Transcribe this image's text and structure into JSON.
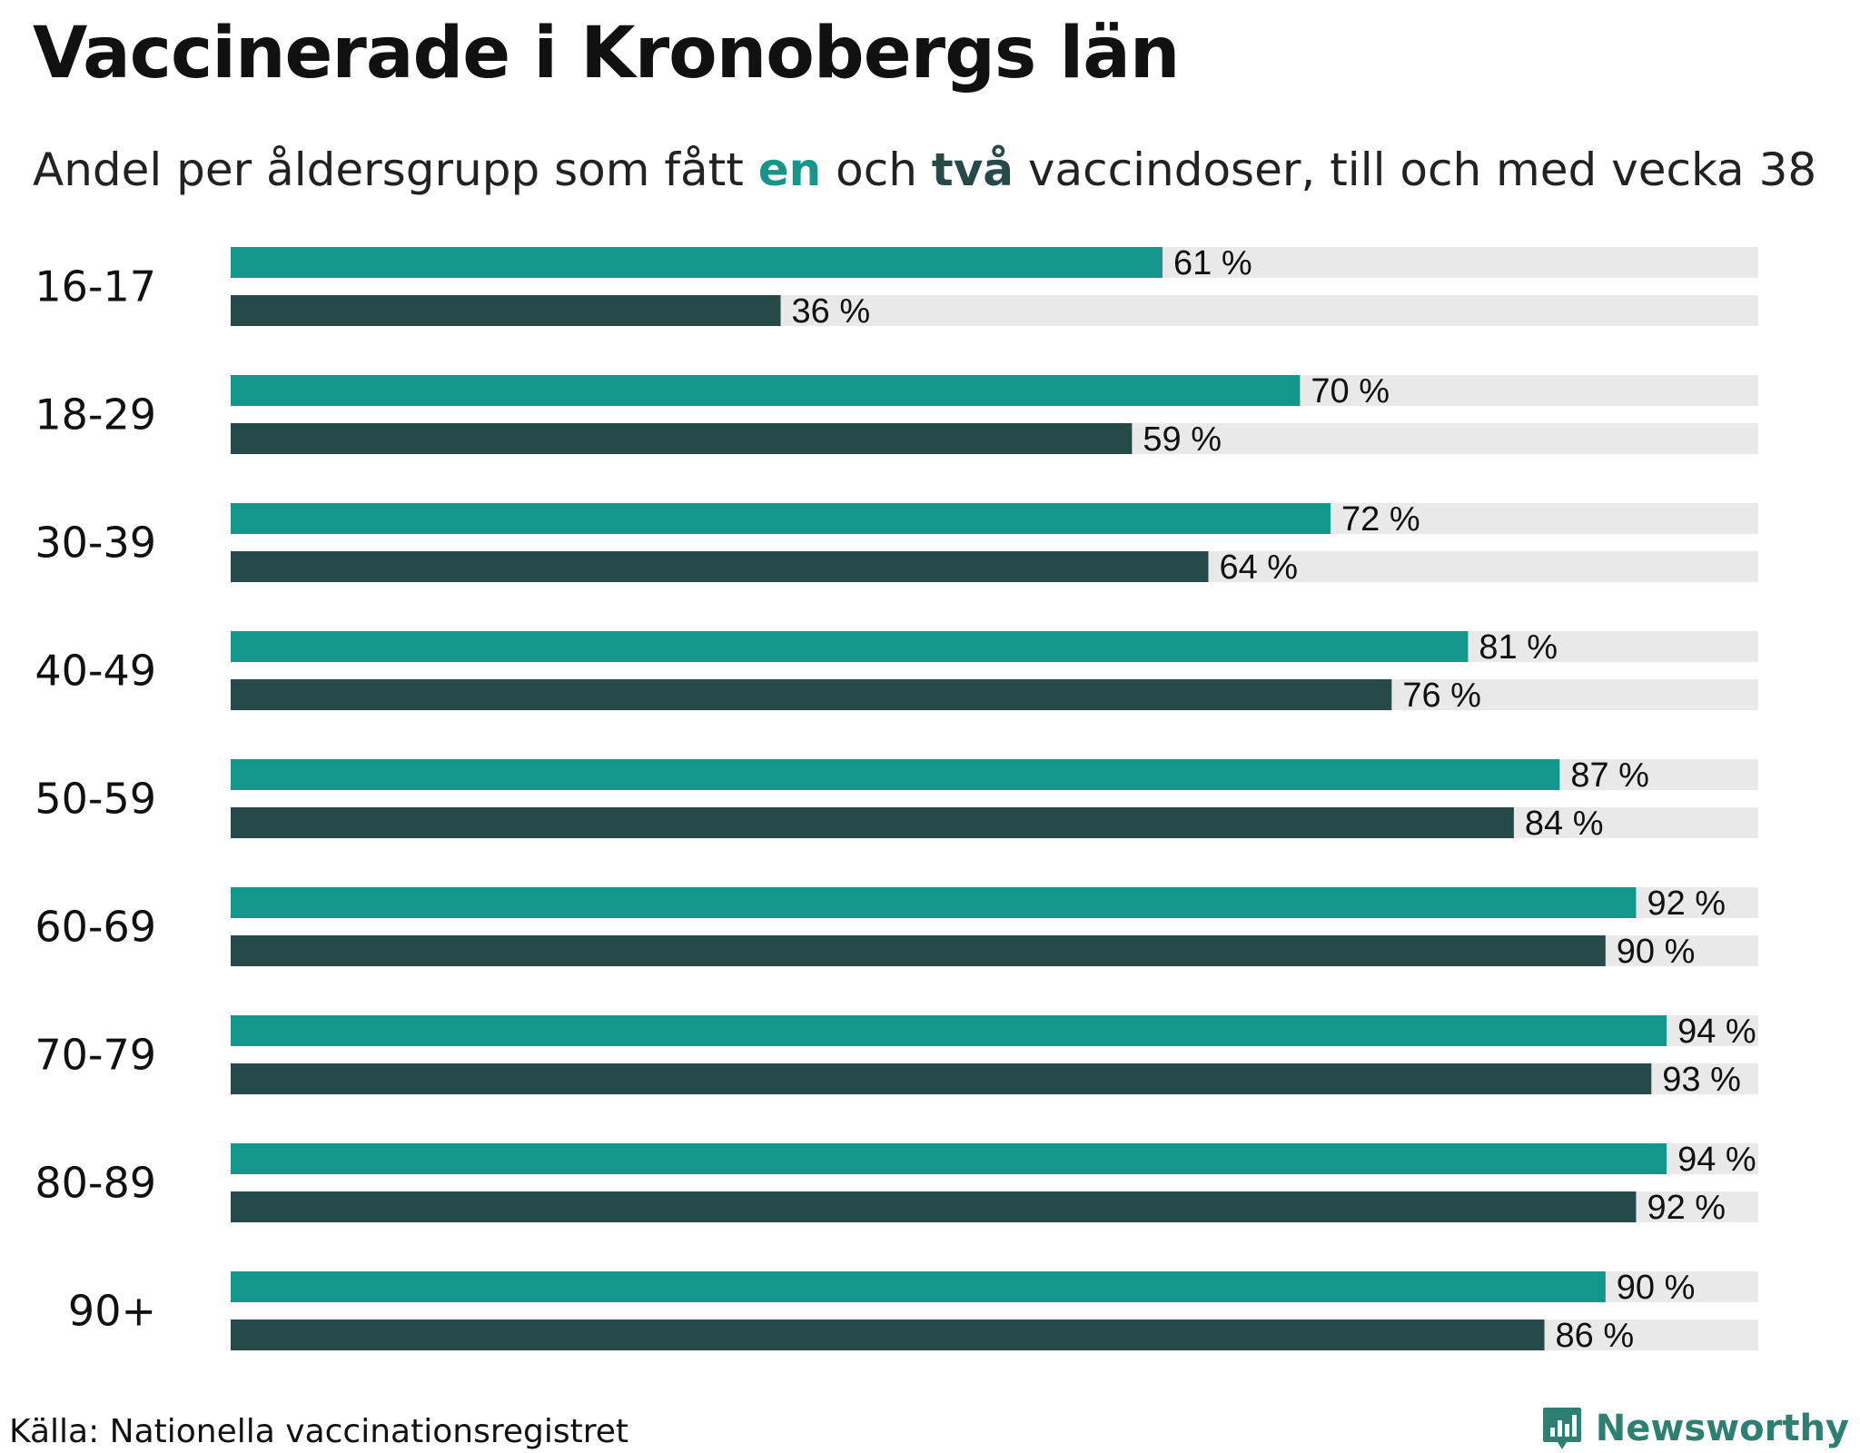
{
  "title": "Vaccinerade i Kronobergs län",
  "subtitle": {
    "pre": "Andel per åldersgrupp som fått ",
    "one": "en",
    "mid": " och ",
    "two": "två",
    "post": " vaccindoser, till och med vecka 38"
  },
  "source": "Källa: Nationella vaccinationsregistret",
  "brand": "Newsworthy",
  "colors": {
    "one_dose": "#14968a",
    "two_doses": "#264a47",
    "track": "#e9e9e9"
  },
  "chart_data": {
    "type": "bar",
    "orientation": "horizontal",
    "categories": [
      "16-17",
      "18-29",
      "30-39",
      "40-49",
      "50-59",
      "60-69",
      "70-79",
      "80-89",
      "90+"
    ],
    "series": [
      {
        "values": [
          61,
          70,
          72,
          81,
          87,
          92,
          94,
          94,
          90
        ],
        "labels": [
          "61 %",
          "70 %",
          "72 %",
          "81 %",
          "87 %",
          "92 %",
          "94 %",
          "94 %",
          "90 %"
        ]
      },
      {
        "values": [
          36,
          59,
          64,
          76,
          84,
          90,
          93,
          92,
          86
        ],
        "labels": [
          "36 %",
          "59 %",
          "64 %",
          "76 %",
          "84 %",
          "90 %",
          "93 %",
          "92 %",
          "86 %"
        ]
      }
    ],
    "xlim": [
      0,
      100
    ],
    "grid": false,
    "legend": "none"
  }
}
